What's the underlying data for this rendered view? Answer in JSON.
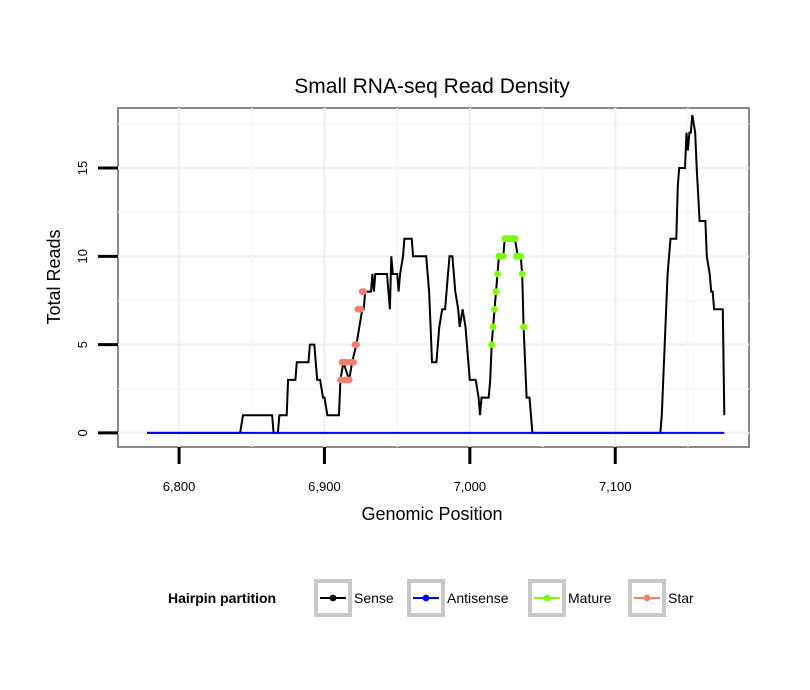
{
  "chart_data": {
    "type": "line",
    "title": "Small RNA-seq Read Density",
    "xlabel": "Genomic Position",
    "ylabel": "Total Reads",
    "xlim": [
      6758,
      7192
    ],
    "ylim": [
      -0.8,
      18.4
    ],
    "x_ticks": [
      6800,
      6900,
      7000,
      7100
    ],
    "x_tick_labels": [
      "6,800",
      "6,900",
      "7,000",
      "7,100"
    ],
    "y_ticks": [
      0,
      5,
      10,
      15
    ],
    "y_tick_labels": [
      "0",
      "5",
      "10",
      "15"
    ],
    "grid": true,
    "legend": {
      "title": "Hairpin partition",
      "position": "bottom",
      "entries": [
        {
          "label": "Sense",
          "color": "#000000"
        },
        {
          "label": "Antisense",
          "color": "#0000ff"
        },
        {
          "label": "Mature",
          "color": "#7cfc00"
        },
        {
          "label": "Star",
          "color": "#f08070"
        }
      ]
    },
    "series": [
      {
        "name": "Sense",
        "color": "#000000",
        "points": [
          [
            6778,
            0
          ],
          [
            6842,
            0
          ],
          [
            6844,
            1
          ],
          [
            6864,
            1
          ],
          [
            6865,
            0
          ],
          [
            6868,
            0
          ],
          [
            6869,
            1
          ],
          [
            6874,
            1
          ],
          [
            6875,
            3
          ],
          [
            6880,
            3
          ],
          [
            6881,
            4
          ],
          [
            6889,
            4
          ],
          [
            6890,
            5
          ],
          [
            6893,
            5
          ],
          [
            6895,
            3
          ],
          [
            6897,
            3
          ],
          [
            6899,
            2
          ],
          [
            6900,
            2
          ],
          [
            6902,
            1
          ],
          [
            6910,
            1
          ],
          [
            6911,
            3
          ],
          [
            6913,
            4
          ],
          [
            6917,
            3
          ],
          [
            6919,
            4
          ],
          [
            6922,
            5
          ],
          [
            6926,
            7
          ],
          [
            6927,
            7
          ],
          [
            6928,
            8
          ],
          [
            6932,
            8
          ],
          [
            6933,
            9
          ],
          [
            6934,
            8
          ],
          [
            6935,
            9
          ],
          [
            6943,
            9
          ],
          [
            6945,
            7
          ],
          [
            6946,
            10
          ],
          [
            6947,
            9
          ],
          [
            6950,
            9
          ],
          [
            6951,
            8
          ],
          [
            6952,
            9
          ],
          [
            6954,
            10
          ],
          [
            6955,
            11
          ],
          [
            6960,
            11
          ],
          [
            6961,
            10
          ],
          [
            6970,
            10
          ],
          [
            6972,
            8
          ],
          [
            6973,
            6
          ],
          [
            6974,
            4
          ],
          [
            6977,
            4
          ],
          [
            6979,
            6
          ],
          [
            6981,
            7
          ],
          [
            6983,
            7
          ],
          [
            6985,
            9
          ],
          [
            6986,
            10
          ],
          [
            6988,
            10
          ],
          [
            6990,
            8
          ],
          [
            6992,
            7
          ],
          [
            6993,
            6
          ],
          [
            6995,
            7
          ],
          [
            6997,
            6
          ],
          [
            6998,
            5
          ],
          [
            7000,
            3
          ],
          [
            7004,
            3
          ],
          [
            7006,
            2
          ],
          [
            7007,
            1
          ],
          [
            7008,
            2
          ],
          [
            7013,
            2
          ],
          [
            7014,
            3
          ],
          [
            7015,
            5
          ],
          [
            7016,
            6
          ],
          [
            7017,
            7
          ],
          [
            7018,
            8
          ],
          [
            7019,
            9
          ],
          [
            7020,
            10
          ],
          [
            7023,
            10
          ],
          [
            7024,
            11
          ],
          [
            7031,
            11
          ],
          [
            7033,
            10
          ],
          [
            7035,
            10
          ],
          [
            7036,
            9
          ],
          [
            7037,
            6
          ],
          [
            7039,
            2
          ],
          [
            7041,
            2
          ],
          [
            7043,
            0
          ],
          [
            7131,
            0
          ],
          [
            7132,
            1
          ],
          [
            7134,
            5
          ],
          [
            7136,
            9
          ],
          [
            7138,
            11
          ],
          [
            7142,
            11
          ],
          [
            7143,
            14
          ],
          [
            7144,
            15
          ],
          [
            7148,
            15
          ],
          [
            7149,
            17
          ],
          [
            7150,
            16
          ],
          [
            7151,
            17
          ],
          [
            7152,
            17
          ],
          [
            7153,
            18
          ],
          [
            7155,
            17
          ],
          [
            7156,
            15
          ],
          [
            7158,
            12
          ],
          [
            7162,
            12
          ],
          [
            7163,
            10
          ],
          [
            7165,
            9
          ],
          [
            7166,
            8
          ],
          [
            7167,
            8
          ],
          [
            7168,
            7
          ],
          [
            7174,
            7
          ],
          [
            7175,
            1
          ]
        ]
      },
      {
        "name": "Antisense",
        "color": "#0000ff",
        "points": [
          [
            6778,
            0
          ],
          [
            7175,
            0
          ]
        ]
      },
      {
        "name": "Mature",
        "color": "#7cfc00",
        "points": [
          [
            7015,
            5
          ],
          [
            7016,
            6
          ],
          [
            7017,
            7
          ],
          [
            7018,
            8
          ],
          [
            7019,
            9
          ],
          [
            7020,
            10
          ],
          [
            7021,
            10
          ],
          [
            7022,
            10
          ],
          [
            7023,
            10
          ],
          [
            7024,
            11
          ],
          [
            7025,
            11
          ],
          [
            7026,
            11
          ],
          [
            7027,
            11
          ],
          [
            7028,
            11
          ],
          [
            7029,
            11
          ],
          [
            7030,
            11
          ],
          [
            7031,
            11
          ],
          [
            7032,
            10
          ],
          [
            7033,
            10
          ],
          [
            7034,
            10
          ],
          [
            7035,
            10
          ],
          [
            7036,
            9
          ],
          [
            7037,
            6
          ]
        ]
      },
      {
        "name": "Star",
        "color": "#f08070",
        "points": [
          [
            6911,
            3
          ],
          [
            6912,
            4
          ],
          [
            6913,
            4
          ],
          [
            6914,
            3
          ],
          [
            6915,
            4
          ],
          [
            6916,
            3
          ],
          [
            6917,
            3
          ],
          [
            6918,
            4
          ],
          [
            6919,
            4
          ],
          [
            6920,
            4
          ],
          [
            6921,
            5
          ],
          [
            6922,
            5
          ],
          [
            6923,
            7
          ],
          [
            6924,
            7
          ],
          [
            6925,
            7
          ],
          [
            6926,
            8
          ],
          [
            6927,
            8
          ]
        ]
      }
    ]
  }
}
